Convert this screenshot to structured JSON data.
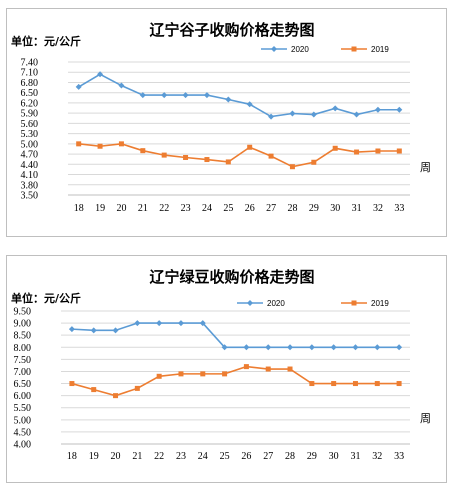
{
  "chart_data": [
    {
      "type": "line",
      "title": "辽宁谷子收购价格走势图",
      "unit_label": "单位：元/公斤",
      "xlabel": "周",
      "categories": [
        "18",
        "19",
        "20",
        "21",
        "22",
        "23",
        "24",
        "25",
        "26",
        "27",
        "28",
        "29",
        "30",
        "31",
        "32",
        "33"
      ],
      "y_ticks": [
        "7.40",
        "7.10",
        "6.80",
        "6.50",
        "6.20",
        "5.90",
        "5.60",
        "5.30",
        "5.00",
        "4.70",
        "4.40",
        "4.10",
        "3.80",
        "3.50"
      ],
      "ylim": [
        3.5,
        7.4
      ],
      "series": [
        {
          "name": "2020",
          "color": "#5b9bd5",
          "marker": "diamond",
          "values": [
            6.67,
            7.04,
            6.71,
            6.43,
            6.43,
            6.43,
            6.43,
            6.3,
            6.16,
            5.8,
            5.89,
            5.86,
            6.04,
            5.86,
            6.0,
            6.0
          ]
        },
        {
          "name": "2019",
          "color": "#ed7d31",
          "marker": "square",
          "values": [
            5.0,
            4.93,
            5.0,
            4.8,
            4.67,
            4.6,
            4.54,
            4.47,
            4.9,
            4.64,
            4.33,
            4.46,
            4.87,
            4.76,
            4.79,
            4.79
          ]
        }
      ],
      "legend_position": "top-right",
      "grid": true
    },
    {
      "type": "line",
      "title": "辽宁绿豆收购价格走势图",
      "unit_label": "单位：元/公斤",
      "xlabel": "周",
      "categories": [
        "18",
        "19",
        "20",
        "21",
        "22",
        "23",
        "24",
        "25",
        "26",
        "27",
        "28",
        "29",
        "30",
        "31",
        "32",
        "33"
      ],
      "y_ticks": [
        "9.50",
        "9.00",
        "8.50",
        "8.00",
        "7.50",
        "7.00",
        "6.50",
        "6.00",
        "5.50",
        "5.00",
        "4.50",
        "4.00"
      ],
      "ylim": [
        4.0,
        9.5
      ],
      "series": [
        {
          "name": "2020",
          "color": "#5b9bd5",
          "marker": "diamond",
          "values": [
            8.75,
            8.7,
            8.7,
            9.0,
            9.0,
            9.0,
            9.0,
            8.0,
            8.0,
            8.0,
            8.0,
            8.0,
            8.0,
            8.0,
            8.0,
            8.0
          ]
        },
        {
          "name": "2019",
          "color": "#ed7d31",
          "marker": "square",
          "values": [
            6.5,
            6.25,
            6.0,
            6.3,
            6.8,
            6.9,
            6.9,
            6.9,
            7.2,
            7.1,
            7.1,
            6.5,
            6.5,
            6.5,
            6.5,
            6.5
          ]
        }
      ],
      "legend_position": "top-right",
      "grid": true
    }
  ]
}
